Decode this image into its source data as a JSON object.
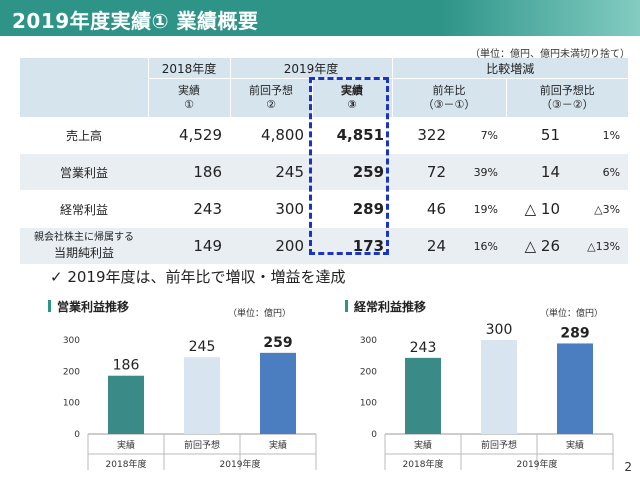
{
  "title": "2019年度実績① 業績概要",
  "unit_note": "（単位：億円、億円未満切り捨て）",
  "table": {
    "h_2018": "2018年度",
    "h_2019": "2019年度",
    "h_compare": "比較増減",
    "h_actual_1": "実績",
    "h_actual_1_no": "①",
    "h_plan_2": "前回予想",
    "h_plan_2_no": "②",
    "h_actual_3": "実績",
    "h_actual_3_no": "③",
    "h_yoy": "前年比",
    "h_yoy_formula": "（③－①）",
    "h_vsplan": "前回予想比",
    "h_vsplan_formula": "（③－②）",
    "rows": [
      {
        "label": "売上高",
        "label2": "",
        "a1": "4,529",
        "p2": "4,800",
        "a3": "4,851",
        "yoy": "322",
        "yoy_pct": "7%",
        "vp": "51",
        "vp_pct": "1%"
      },
      {
        "label": "営業利益",
        "label2": "",
        "a1": "186",
        "p2": "245",
        "a3": "259",
        "yoy": "72",
        "yoy_pct": "39%",
        "vp": "14",
        "vp_pct": "6%"
      },
      {
        "label": "経常利益",
        "label2": "",
        "a1": "243",
        "p2": "300",
        "a3": "289",
        "yoy": "46",
        "yoy_pct": "19%",
        "vp": "△ 10",
        "vp_pct": "△3%"
      },
      {
        "label": "親会社株主に帰属する",
        "label2": "当期純利益",
        "a1": "149",
        "p2": "200",
        "a3": "173",
        "yoy": "24",
        "yoy_pct": "16%",
        "vp": "△ 26",
        "vp_pct": "△13%"
      }
    ]
  },
  "note": "✓ 2019年度は、前年比で増収・増益を達成",
  "page_number": "2",
  "chart_data": [
    {
      "type": "bar",
      "title": "営業利益推移",
      "unit": "（単位：億円）",
      "categories": [
        "実績",
        "前回予想",
        "実績"
      ],
      "groups": [
        "2018年度",
        "2019年度"
      ],
      "values": [
        186,
        245,
        259
      ],
      "value_labels": [
        "186",
        "245",
        "259"
      ],
      "colors": [
        "#3a8a88",
        "#d8e4ef",
        "#4a7ec0"
      ],
      "ylim": [
        0,
        300
      ],
      "yticks": [
        "0",
        "100",
        "200",
        "300"
      ],
      "grid": false
    },
    {
      "type": "bar",
      "title": "経常利益推移",
      "unit": "（単位：億円）",
      "categories": [
        "実績",
        "前回予想",
        "実績"
      ],
      "groups": [
        "2018年度",
        "2019年度"
      ],
      "values": [
        243,
        300,
        289
      ],
      "value_labels": [
        "243",
        "300",
        "289"
      ],
      "colors": [
        "#3a8a88",
        "#d8e4ef",
        "#4a7ec0"
      ],
      "ylim": [
        0,
        300
      ],
      "yticks": [
        "0",
        "100",
        "200",
        "300"
      ],
      "grid": false
    }
  ]
}
